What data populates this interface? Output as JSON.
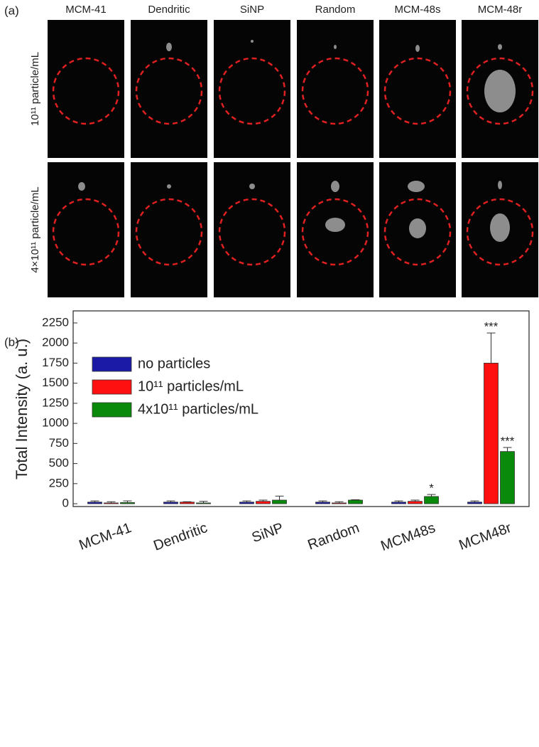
{
  "panel_a": {
    "label": "(a)",
    "columns": [
      "MCM-41",
      "Dendritic",
      "SiNP",
      "Random",
      "MCM-48s",
      "MCM-48r"
    ],
    "rows": [
      "10¹¹ particle/mL",
      "4×10¹¹ particle/mL"
    ]
  },
  "chart_data": {
    "type": "bar",
    "panel_label": "(b)",
    "y_label": "Total Intensity (a. u.)",
    "categories": [
      "MCM-41",
      "Dendritic",
      "SiNP",
      "Random",
      "MCM48s",
      "MCM48r"
    ],
    "series": [
      {
        "name": "no particles",
        "color": "#1a1aa6",
        "values": [
          20,
          20,
          20,
          20,
          20,
          20
        ],
        "errors": [
          15,
          15,
          15,
          15,
          15,
          15
        ]
      },
      {
        "name": "10¹¹ particles/mL",
        "color": "#ff1010",
        "values": [
          10,
          20,
          30,
          10,
          30,
          1750
        ],
        "errors": [
          15,
          5,
          15,
          15,
          15,
          375
        ],
        "significance": [
          null,
          null,
          null,
          null,
          null,
          "***"
        ]
      },
      {
        "name": "4x10¹¹ particles/mL",
        "color": "#0a8a0a",
        "values": [
          15,
          10,
          45,
          45,
          90,
          650
        ],
        "errors": [
          20,
          20,
          50,
          5,
          25,
          50
        ],
        "significance": [
          null,
          null,
          null,
          null,
          "*",
          "***"
        ]
      }
    ],
    "ylim": [
      -35,
      2400
    ],
    "yticks": [
      0,
      250,
      500,
      750,
      1000,
      1250,
      1500,
      1750,
      2000,
      2250
    ],
    "legend": "upper-left"
  }
}
